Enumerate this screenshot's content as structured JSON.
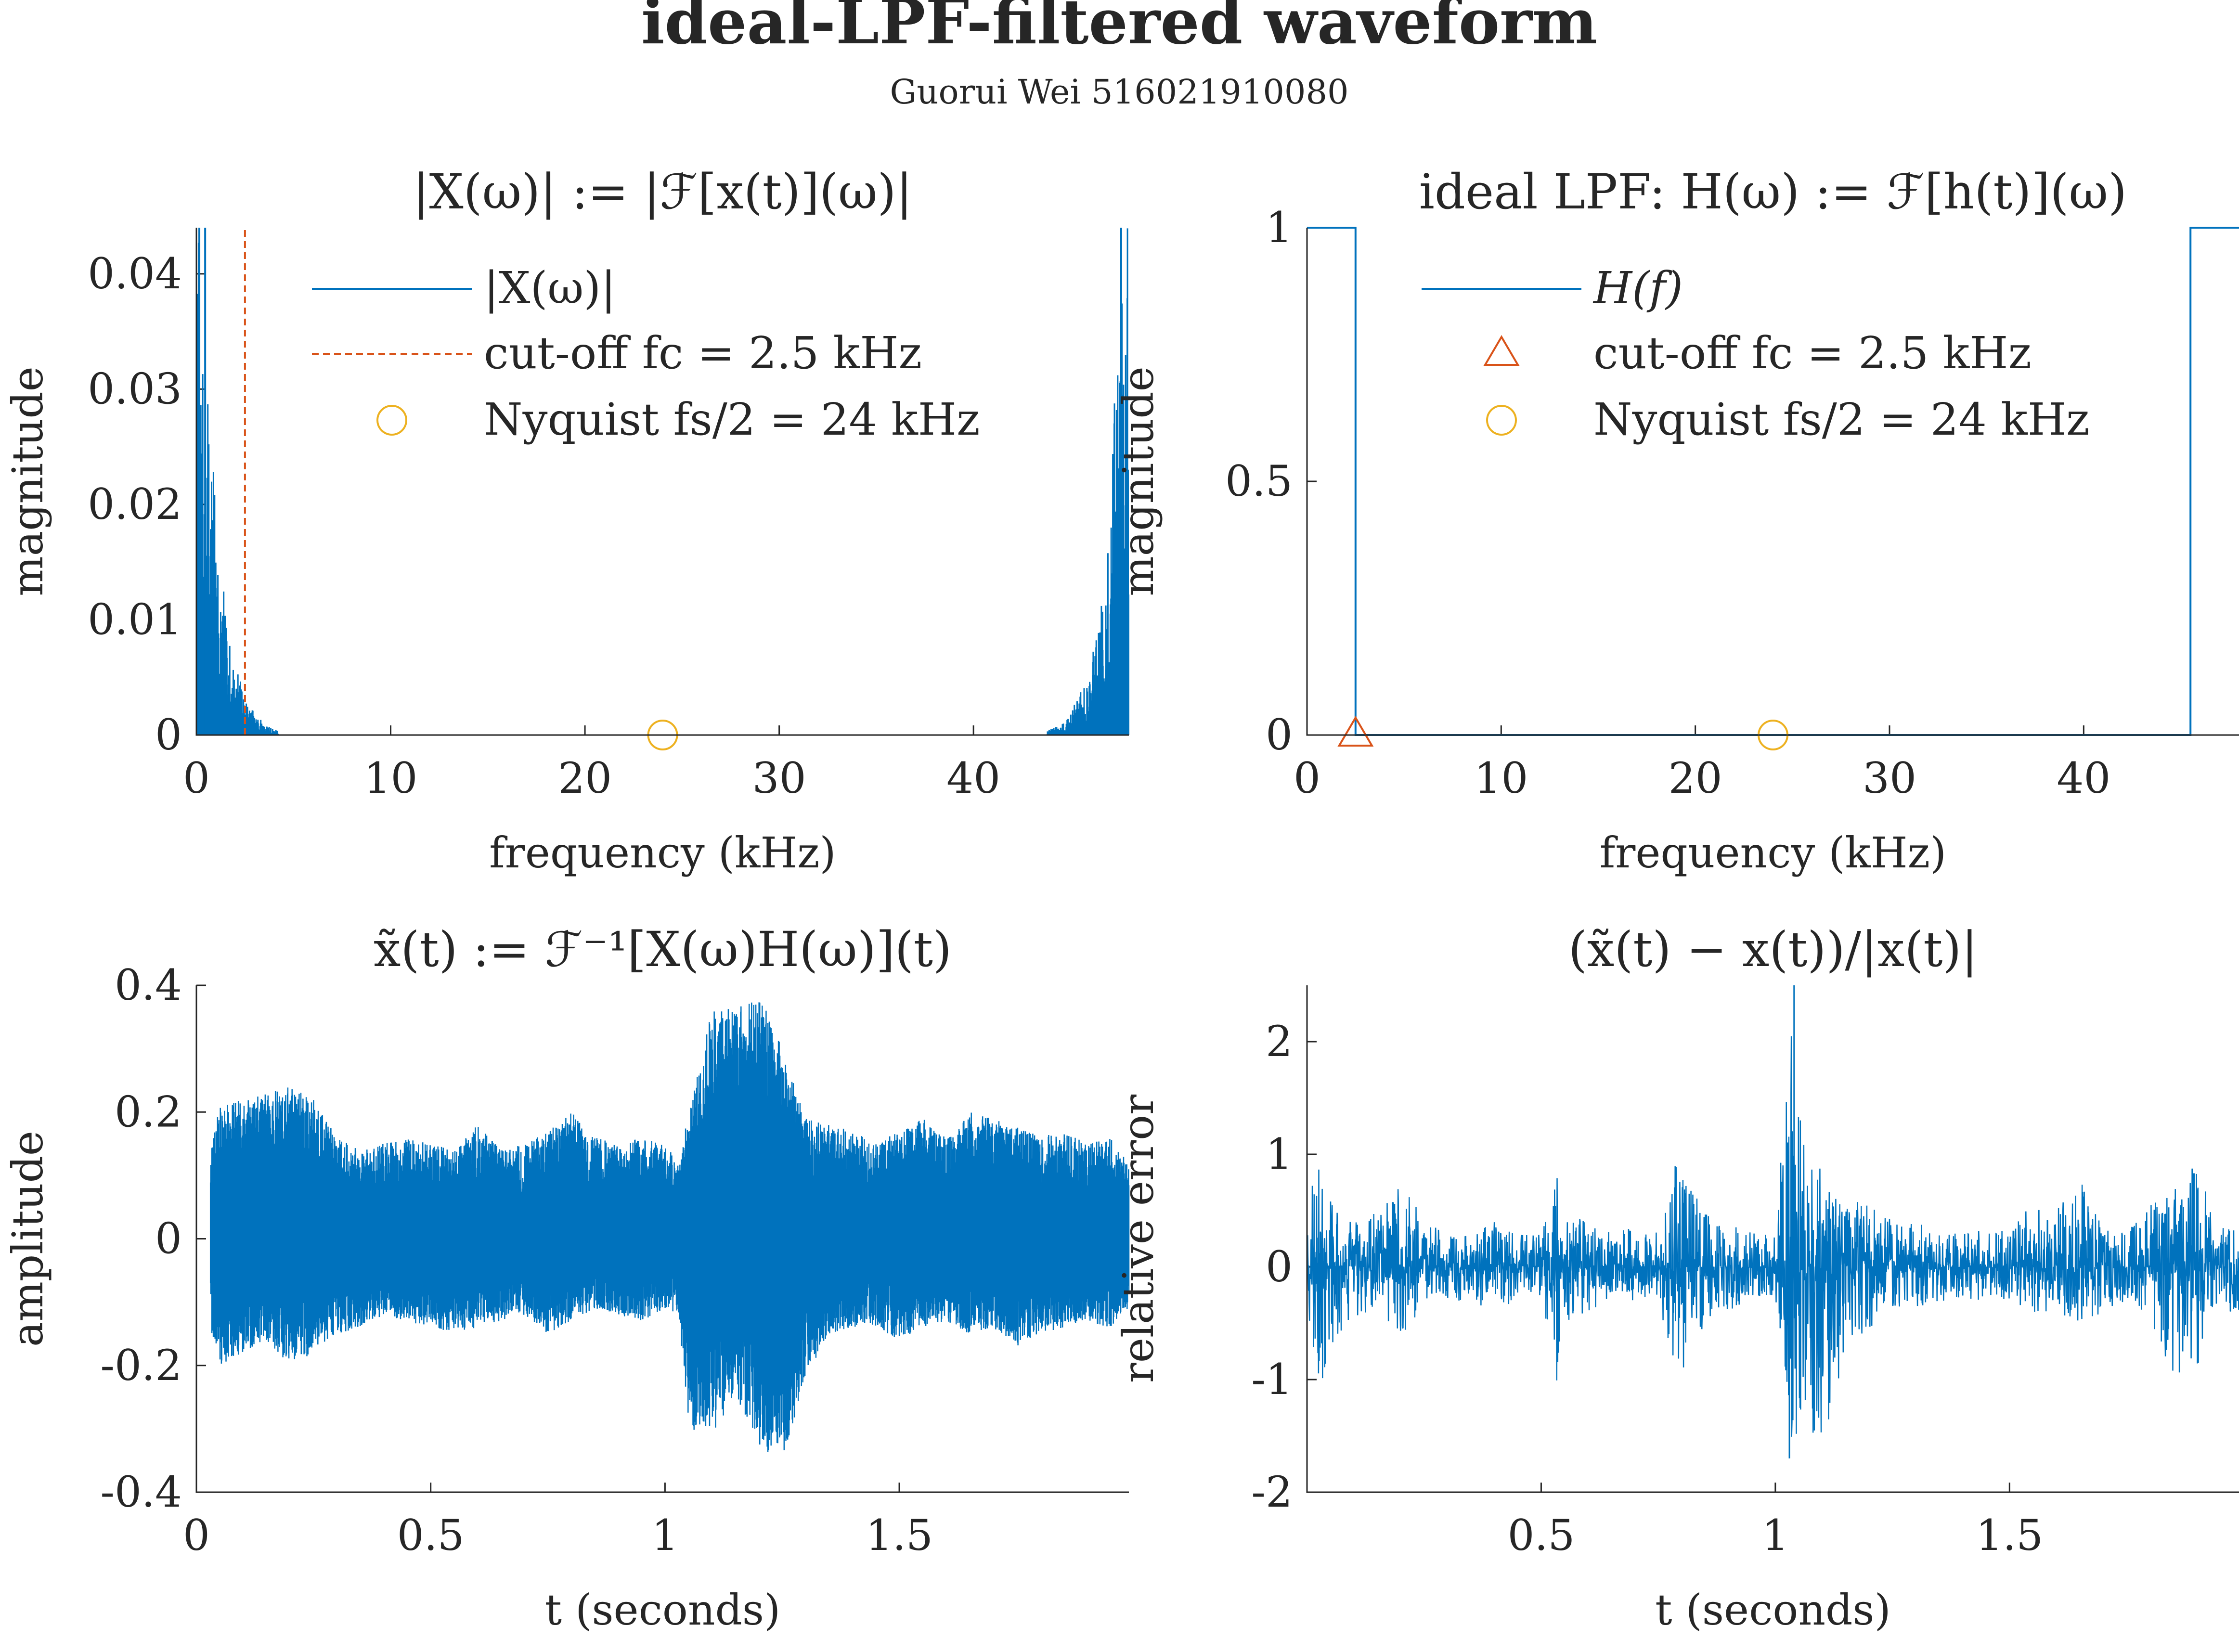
{
  "figure": {
    "title": "ideal-LPF-filtered waveform",
    "subtitle": "Guorui Wei 516021910080"
  },
  "colors": {
    "blue": "#0072BD",
    "orange": "#D95319",
    "yellow": "#EDB120",
    "axis": "#262626"
  },
  "chart_data": [
    {
      "id": "spectrum",
      "type": "line",
      "title": "|X(ω)| := |ℱ[x(t)](ω)|",
      "xlabel": "frequency (kHz)",
      "ylabel": "magnitude",
      "xlim": [
        0,
        48
      ],
      "ylim": [
        0,
        0.044
      ],
      "xticks": [
        0,
        10,
        20,
        30,
        40
      ],
      "xtick_labels": [
        "0",
        "10",
        "20",
        "30",
        "40"
      ],
      "yticks": [
        0,
        0.01,
        0.02,
        0.03,
        0.04
      ],
      "ytick_labels": [
        "0",
        "0.01",
        "0.02",
        "0.03",
        "0.04"
      ],
      "legend_location": "top",
      "legend": [
        "|X(ω)|",
        "cut-off fc = 2.5 kHz",
        "Nyquist fs/2 = 24 kHz"
      ],
      "series": [
        {
          "name": "|X(ω)|",
          "style": "spectrum-lines",
          "color": "#0072BD",
          "note_points": [
            [
              0.15,
              0.044
            ],
            [
              0.3,
              0.033
            ],
            [
              0.5,
              0.028
            ],
            [
              0.7,
              0.03
            ],
            [
              0.9,
              0.024
            ],
            [
              1.1,
              0.018
            ],
            [
              1.2,
              0.014
            ],
            [
              1.35,
              0.014
            ],
            [
              1.5,
              0.01
            ],
            [
              1.8,
              0.007
            ],
            [
              2.1,
              0.006
            ],
            [
              2.5,
              0.003
            ],
            [
              3.0,
              0.002
            ],
            [
              3.5,
              0.001
            ],
            [
              4.0,
              0.0005
            ],
            [
              44.0,
              0.0005
            ],
            [
              44.5,
              0.001
            ],
            [
              45.0,
              0.002
            ],
            [
              45.5,
              0.004
            ],
            [
              46.0,
              0.006
            ],
            [
              46.4,
              0.009
            ],
            [
              46.8,
              0.014
            ],
            [
              47.1,
              0.028
            ],
            [
              47.3,
              0.03
            ],
            [
              47.5,
              0.033
            ],
            [
              47.8,
              0.044
            ]
          ]
        },
        {
          "name": "cut-off fc = 2.5 kHz",
          "style": "dashed-vertical",
          "color": "#D95319",
          "x": 2.5
        },
        {
          "name": "Nyquist fs/2 = 24 kHz",
          "style": "circle-marker",
          "color": "#EDB120",
          "x": 24,
          "y": 0
        }
      ]
    },
    {
      "id": "filter",
      "type": "line",
      "title": "ideal LPF: H(ω) := ℱ[h(t)](ω)",
      "xlabel": "frequency (kHz)",
      "ylabel": "magnitude",
      "xlim": [
        0,
        48
      ],
      "ylim": [
        0,
        1
      ],
      "xticks": [
        0,
        10,
        20,
        30,
        40
      ],
      "xtick_labels": [
        "0",
        "10",
        "20",
        "30",
        "40"
      ],
      "yticks": [
        0,
        0.5,
        1
      ],
      "ytick_labels": [
        "0",
        "0.5",
        "1"
      ],
      "legend_location": "top",
      "legend": [
        "H(f)",
        "cut-off fc = 2.5 kHz",
        "Nyquist fs/2 = 24 kHz"
      ],
      "series": [
        {
          "name": "H(f)",
          "style": "step",
          "color": "#0072BD",
          "x": [
            0,
            2.5,
            2.5,
            45.5,
            45.5,
            48
          ],
          "y": [
            1,
            1,
            0,
            0,
            1,
            1
          ]
        },
        {
          "name": "cut-off fc = 2.5 kHz",
          "style": "triangle-marker",
          "color": "#D95319",
          "x": 2.5,
          "y": 0
        },
        {
          "name": "Nyquist fs/2 = 24 kHz",
          "style": "circle-marker",
          "color": "#EDB120",
          "x": 24,
          "y": 0
        }
      ]
    },
    {
      "id": "waveform",
      "type": "line",
      "title": "x̃(t) := ℱ⁻¹[X(ω)H(ω)](t)",
      "xlabel": "t (seconds)",
      "ylabel": "amplitude",
      "xlim": [
        0,
        1.99
      ],
      "ylim": [
        -0.4,
        0.4
      ],
      "xticks": [
        0,
        0.5,
        1,
        1.5
      ],
      "xtick_labels": [
        "0",
        "0.5",
        "1",
        "1.5"
      ],
      "yticks": [
        -0.4,
        -0.2,
        0,
        0.2,
        0.4
      ],
      "ytick_labels": [
        "-0.4",
        "-0.2",
        "0",
        "0.2",
        "0.4"
      ],
      "series": [
        {
          "name": "x̃(t)",
          "style": "dense-waveform",
          "color": "#0072BD",
          "t_start": 0.03,
          "t_end": 1.99,
          "envelope_t": [
            0.03,
            0.05,
            0.1,
            0.15,
            0.2,
            0.25,
            0.3,
            0.35,
            0.4,
            0.45,
            0.5,
            0.55,
            0.6,
            0.65,
            0.7,
            0.75,
            0.8,
            0.85,
            0.9,
            0.95,
            1.0,
            1.03,
            1.05,
            1.1,
            1.15,
            1.2,
            1.25,
            1.3,
            1.35,
            1.4,
            1.45,
            1.5,
            1.55,
            1.6,
            1.65,
            1.7,
            1.75,
            1.8,
            1.85,
            1.9,
            1.95,
            1.99
          ],
          "envelope_max": [
            0.14,
            0.21,
            0.22,
            0.23,
            0.24,
            0.22,
            0.16,
            0.14,
            0.15,
            0.16,
            0.15,
            0.14,
            0.18,
            0.14,
            0.15,
            0.17,
            0.2,
            0.16,
            0.15,
            0.16,
            0.15,
            0.12,
            0.2,
            0.36,
            0.37,
            0.39,
            0.3,
            0.19,
            0.18,
            0.17,
            0.15,
            0.17,
            0.19,
            0.16,
            0.2,
            0.19,
            0.18,
            0.16,
            0.17,
            0.15,
            0.16,
            0.12
          ],
          "envelope_min": [
            -0.14,
            -0.2,
            -0.18,
            -0.16,
            -0.2,
            -0.18,
            -0.15,
            -0.14,
            -0.12,
            -0.13,
            -0.14,
            -0.15,
            -0.14,
            -0.13,
            -0.12,
            -0.15,
            -0.13,
            -0.11,
            -0.12,
            -0.13,
            -0.11,
            -0.12,
            -0.3,
            -0.31,
            -0.25,
            -0.33,
            -0.35,
            -0.22,
            -0.15,
            -0.14,
            -0.14,
            -0.16,
            -0.14,
            -0.13,
            -0.15,
            -0.14,
            -0.17,
            -0.15,
            -0.14,
            -0.13,
            -0.14,
            -0.11
          ]
        }
      ]
    },
    {
      "id": "error",
      "type": "line",
      "title": "(x̃(t) − x(t))/|x(t)|",
      "xlabel": "t (seconds)",
      "ylabel": "relative error",
      "xlim": [
        0.0,
        1.99
      ],
      "ylim": [
        -2,
        2.5
      ],
      "xticks": [
        0.5,
        1,
        1.5
      ],
      "xtick_labels": [
        "0.5",
        "1",
        "1.5"
      ],
      "yticks": [
        -2,
        -1,
        0,
        1,
        2
      ],
      "ytick_labels": [
        "-2",
        "-1",
        "0",
        "1",
        "2"
      ],
      "series": [
        {
          "name": "relative error",
          "style": "dense-noise",
          "color": "#0072BD",
          "t_start": 0.0,
          "t_end": 1.99,
          "envelope_t": [
            0.0,
            0.03,
            0.05,
            0.1,
            0.15,
            0.2,
            0.25,
            0.3,
            0.35,
            0.4,
            0.45,
            0.5,
            0.53,
            0.55,
            0.6,
            0.65,
            0.7,
            0.75,
            0.79,
            0.85,
            0.9,
            0.95,
            1.0,
            1.02,
            1.04,
            1.06,
            1.1,
            1.15,
            1.2,
            1.25,
            1.3,
            1.35,
            1.4,
            1.45,
            1.5,
            1.55,
            1.6,
            1.65,
            1.7,
            1.75,
            1.8,
            1.85,
            1.9,
            1.95,
            1.99
          ],
          "envelope_max": [
            0.6,
            1.0,
            0.6,
            0.4,
            0.5,
            0.8,
            0.4,
            0.3,
            0.3,
            0.4,
            0.3,
            0.3,
            0.9,
            0.5,
            0.4,
            0.3,
            0.4,
            0.3,
            1.0,
            0.5,
            0.4,
            0.3,
            0.3,
            1.4,
            2.5,
            1.2,
            0.9,
            0.6,
            0.6,
            0.4,
            0.4,
            0.3,
            0.3,
            0.4,
            0.3,
            0.6,
            0.5,
            0.8,
            0.4,
            0.3,
            0.6,
            0.7,
            1.0,
            0.4,
            0.3
          ],
          "envelope_min": [
            -0.6,
            -1.1,
            -0.7,
            -0.5,
            -0.5,
            -0.6,
            -0.4,
            -0.3,
            -0.3,
            -0.4,
            -0.3,
            -0.3,
            -1.2,
            -0.5,
            -0.4,
            -0.3,
            -0.3,
            -0.3,
            -1.1,
            -0.5,
            -0.4,
            -0.3,
            -0.3,
            -1.0,
            -1.7,
            -1.3,
            -1.7,
            -0.8,
            -0.6,
            -0.4,
            -0.4,
            -0.3,
            -0.3,
            -0.3,
            -0.3,
            -0.4,
            -0.4,
            -0.5,
            -0.4,
            -0.3,
            -0.5,
            -1.0,
            -0.9,
            -0.4,
            -0.4
          ]
        }
      ]
    }
  ]
}
